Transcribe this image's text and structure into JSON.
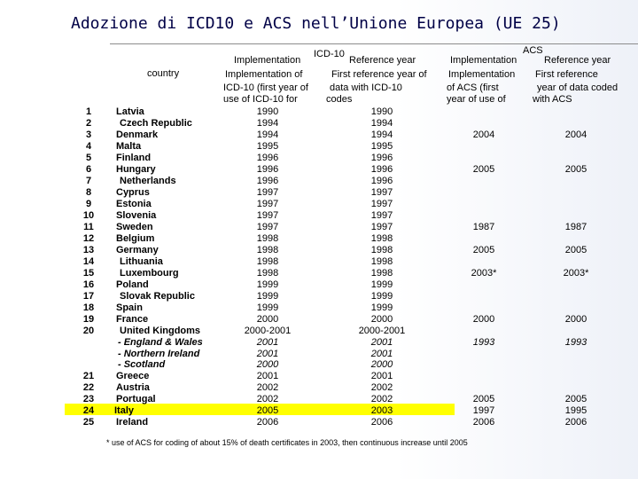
{
  "title": "Adozione di ICD10 e ACS nell’Unione Europea (UE 25)",
  "header": {
    "group_icd10": "ICD-10",
    "group_acs": "ACS",
    "country_label": "country",
    "icd_impl_lines": [
      "Implementation",
      "Implementation of",
      "ICD-10 (first year of",
      "use of ICD-10 for"
    ],
    "icd_ref_lines": [
      "Reference year",
      "First reference year of",
      "data with ICD-10",
      "codes"
    ],
    "acs_impl_lines": [
      "Implementation",
      "Implementation",
      "of ACS (first",
      "year of use of"
    ],
    "acs_ref_lines": [
      "Reference year",
      "First reference",
      "year of data coded",
      "with ACS"
    ]
  },
  "rows": [
    {
      "num": "1",
      "country": "Latvia",
      "icd_impl": "1990",
      "icd_ref": "1990",
      "acs_impl": "",
      "acs_ref": "",
      "style": ""
    },
    {
      "num": "2",
      "country": "Czech Republic",
      "icd_impl": "1994",
      "icd_ref": "1994",
      "acs_impl": "",
      "acs_ref": "",
      "style": "ind"
    },
    {
      "num": "3",
      "country": "Denmark",
      "icd_impl": "1994",
      "icd_ref": "1994",
      "acs_impl": "2004",
      "acs_ref": "2004",
      "style": ""
    },
    {
      "num": "4",
      "country": "Malta",
      "icd_impl": "1995",
      "icd_ref": "1995",
      "acs_impl": "",
      "acs_ref": "",
      "style": ""
    },
    {
      "num": "5",
      "country": "Finland",
      "icd_impl": "1996",
      "icd_ref": "1996",
      "acs_impl": "",
      "acs_ref": "",
      "style": ""
    },
    {
      "num": "6",
      "country": "Hungary",
      "icd_impl": "1996",
      "icd_ref": "1996",
      "acs_impl": "2005",
      "acs_ref": "2005",
      "style": ""
    },
    {
      "num": "7",
      "country": "Netherlands",
      "icd_impl": "1996",
      "icd_ref": "1996",
      "acs_impl": "",
      "acs_ref": "",
      "style": "ind"
    },
    {
      "num": "8",
      "country": "Cyprus",
      "icd_impl": "1997",
      "icd_ref": "1997",
      "acs_impl": "",
      "acs_ref": "",
      "style": ""
    },
    {
      "num": "9",
      "country": "Estonia",
      "icd_impl": "1997",
      "icd_ref": "1997",
      "acs_impl": "",
      "acs_ref": "",
      "style": ""
    },
    {
      "num": "10",
      "country": "Slovenia",
      "icd_impl": "1997",
      "icd_ref": "1997",
      "acs_impl": "",
      "acs_ref": "",
      "style": ""
    },
    {
      "num": "11",
      "country": "Sweden",
      "icd_impl": "1997",
      "icd_ref": "1997",
      "acs_impl": "1987",
      "acs_ref": "1987",
      "style": ""
    },
    {
      "num": "12",
      "country": "Belgium",
      "icd_impl": "1998",
      "icd_ref": "1998",
      "acs_impl": "",
      "acs_ref": "",
      "style": ""
    },
    {
      "num": "13",
      "country": "Germany",
      "icd_impl": "1998",
      "icd_ref": "1998",
      "acs_impl": "2005",
      "acs_ref": "2005",
      "style": ""
    },
    {
      "num": "14",
      "country": "Lithuania",
      "icd_impl": "1998",
      "icd_ref": "1998",
      "acs_impl": "",
      "acs_ref": "",
      "style": "ind"
    },
    {
      "num": "15",
      "country": "Luxembourg",
      "icd_impl": "1998",
      "icd_ref": "1998",
      "acs_impl": "2003*",
      "acs_ref": "2003*",
      "style": "ind"
    },
    {
      "num": "16",
      "country": "Poland",
      "icd_impl": "1999",
      "icd_ref": "1999",
      "acs_impl": "",
      "acs_ref": "",
      "style": ""
    },
    {
      "num": "17",
      "country": "Slovak Republic",
      "icd_impl": "1999",
      "icd_ref": "1999",
      "acs_impl": "",
      "acs_ref": "",
      "style": "ind"
    },
    {
      "num": "18",
      "country": "Spain",
      "icd_impl": "1999",
      "icd_ref": "1999",
      "acs_impl": "",
      "acs_ref": "",
      "style": ""
    },
    {
      "num": "19",
      "country": "France",
      "icd_impl": "2000",
      "icd_ref": "2000",
      "acs_impl": "2000",
      "acs_ref": "2000",
      "style": ""
    },
    {
      "num": "20",
      "country": "United Kingdoms",
      "icd_impl": "2000-2001",
      "icd_ref": "2000-2001",
      "acs_impl": "",
      "acs_ref": "",
      "style": "ind"
    },
    {
      "num": "",
      "country": "- England & Wales",
      "icd_impl": "2001",
      "icd_ref": "2001",
      "acs_impl": "1993",
      "acs_ref": "1993",
      "style": "sub"
    },
    {
      "num": "",
      "country": "- Northern Ireland",
      "icd_impl": "2001",
      "icd_ref": "2001",
      "acs_impl": "",
      "acs_ref": "",
      "style": "sub"
    },
    {
      "num": "",
      "country": "- Scotland",
      "icd_impl": "2000",
      "icd_ref": "2000",
      "acs_impl": "",
      "acs_ref": "",
      "style": "sub"
    },
    {
      "num": "21",
      "country": "Greece",
      "icd_impl": "2001",
      "icd_ref": "2001",
      "acs_impl": "",
      "acs_ref": "",
      "style": ""
    },
    {
      "num": "22",
      "country": "Austria",
      "icd_impl": "2002",
      "icd_ref": "2002",
      "acs_impl": "",
      "acs_ref": "",
      "style": ""
    },
    {
      "num": "23",
      "country": "Portugal",
      "icd_impl": "2002",
      "icd_ref": "2002",
      "acs_impl": "2005",
      "acs_ref": "2005",
      "style": ""
    },
    {
      "num": "24",
      "country": "Italy",
      "icd_impl": "2005",
      "icd_ref": "2003",
      "acs_impl": "1997",
      "acs_ref": "1995",
      "style": "hl"
    },
    {
      "num": "25",
      "country": "Ireland",
      "icd_impl": "2006",
      "icd_ref": "2006",
      "acs_impl": "2006",
      "acs_ref": "2006",
      "style": ""
    }
  ],
  "footnote": "* use of ACS for coding of about 15% of death certificates in 2003, then continuous increase until 2005",
  "colors": {
    "title": "#000046",
    "highlight": "#ffff00"
  }
}
